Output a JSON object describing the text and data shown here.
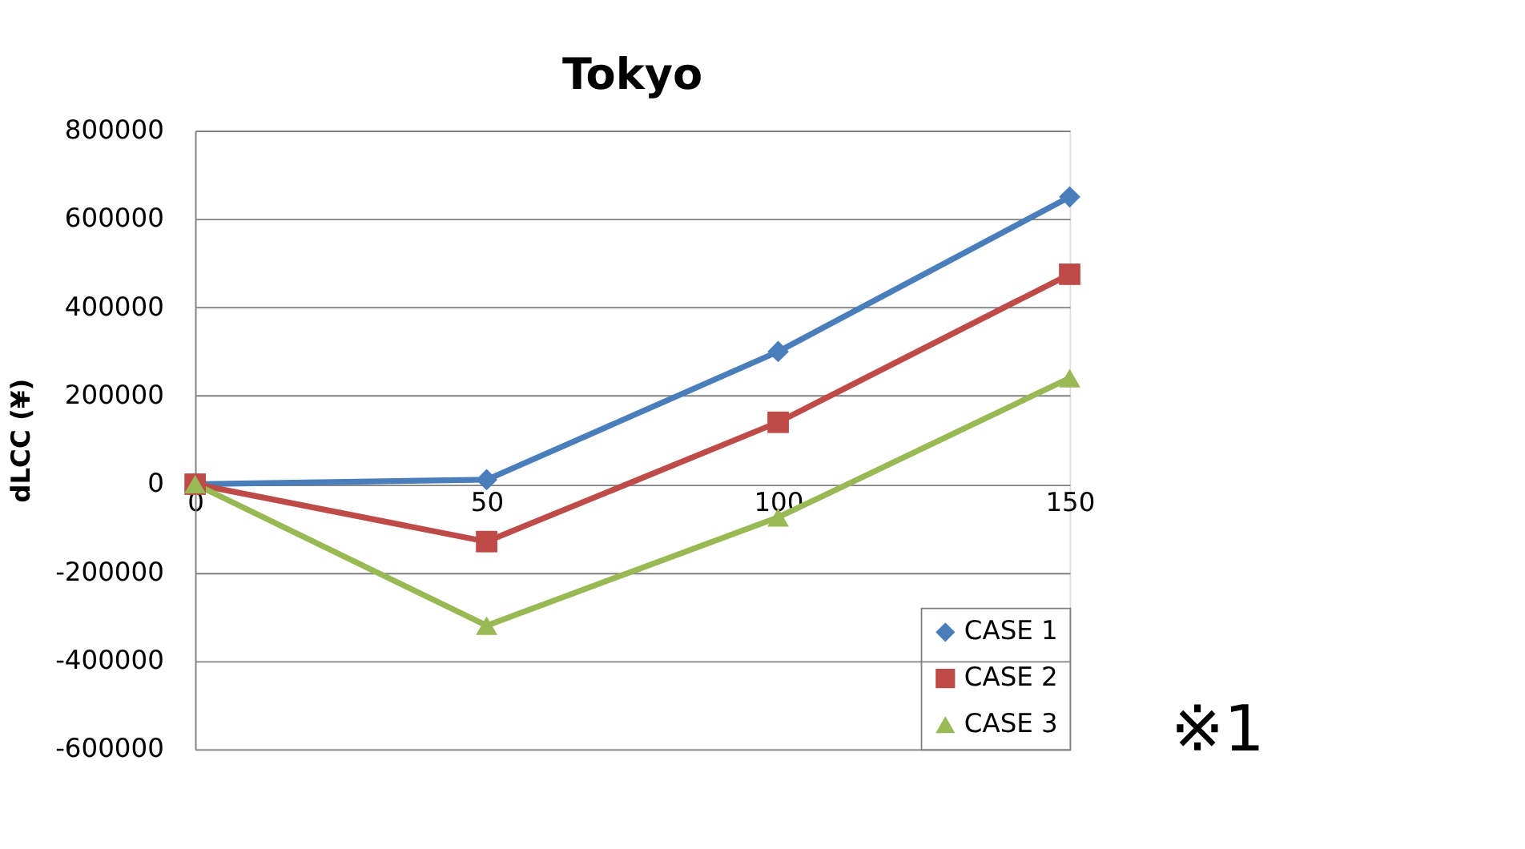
{
  "chart_data": {
    "type": "line",
    "title": "Tokyo",
    "ylabel": "dLCC (¥)",
    "x": [
      0,
      50,
      100,
      150
    ],
    "series": [
      {
        "name": "CASE 1",
        "color": "#4a7ebb",
        "marker": "diamond",
        "values": [
          0,
          10000,
          300000,
          650000
        ]
      },
      {
        "name": "CASE 2",
        "color": "#be4b48",
        "marker": "square",
        "values": [
          0,
          -130000,
          140000,
          475000
        ]
      },
      {
        "name": "CASE 3",
        "color": "#98b954",
        "marker": "triangle",
        "values": [
          0,
          -320000,
          -75000,
          240000
        ]
      }
    ],
    "xlim": [
      0,
      150
    ],
    "xticks": [
      0,
      50,
      100,
      150
    ],
    "ylim": [
      -600000,
      800000
    ],
    "yticks": [
      -600000,
      -400000,
      -200000,
      0,
      200000,
      400000,
      600000,
      800000
    ],
    "grid": "y",
    "legend": "bottom right",
    "line_style": "solid",
    "annotations": [
      "※1"
    ]
  }
}
